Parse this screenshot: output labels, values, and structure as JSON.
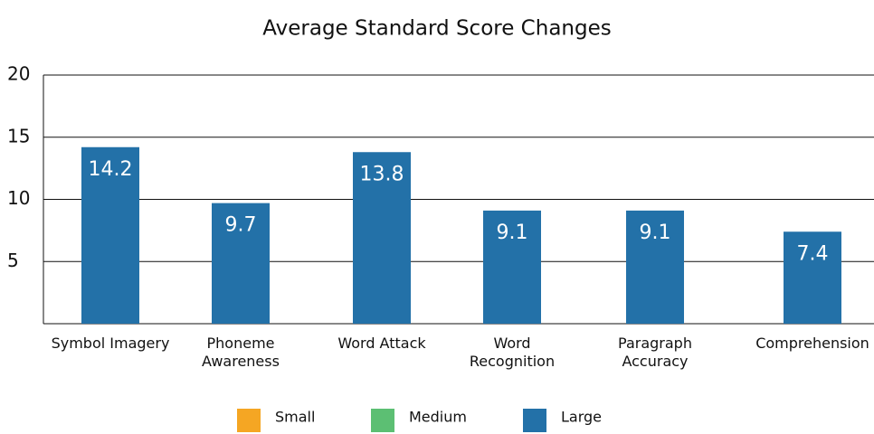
{
  "chart_data": {
    "type": "bar",
    "title": "Average Standard Score Changes",
    "categories": [
      "Symbol Imagery",
      "Phoneme\nAwareness",
      "Word Attack",
      "Word\nRecognition",
      "Paragraph\nAccuracy",
      "Comprehension"
    ],
    "series": [
      {
        "name": "Small",
        "color": "#f5a623",
        "values": [
          null,
          null,
          null,
          null,
          null,
          null
        ]
      },
      {
        "name": "Medium",
        "color": "#5cbf73",
        "values": [
          null,
          null,
          null,
          null,
          null,
          null
        ]
      },
      {
        "name": "Large",
        "color": "#2371a8",
        "values": [
          14.2,
          9.7,
          13.8,
          9.1,
          9.1,
          7.4
        ]
      }
    ],
    "ylim": [
      0,
      20
    ],
    "yticks": [
      5,
      10,
      15,
      20
    ],
    "grid": true
  }
}
